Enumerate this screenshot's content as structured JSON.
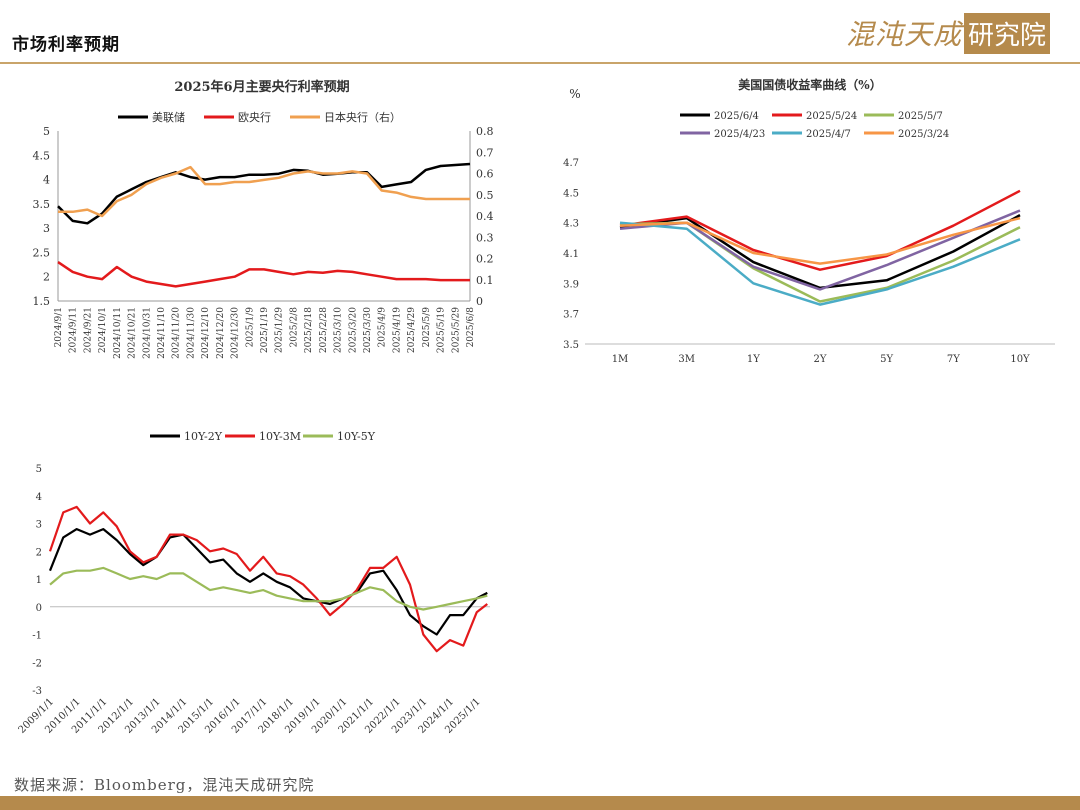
{
  "page": {
    "title": "市场利率预期",
    "logo_text": "混沌天成",
    "logo_box_text": "研究院",
    "source": "数据来源：Bloomberg，混沌天成研究院",
    "colors": {
      "accent": "#c9a46a",
      "logo": "#b58a4c"
    }
  },
  "chart_data": [
    {
      "type": "line",
      "title": "2025年6月主要央行利率预期",
      "legend_position": "top",
      "x_dates": [
        "2024/9/1",
        "2024/9/11",
        "2024/9/21",
        "2024/10/1",
        "2024/10/11",
        "2024/10/21",
        "2024/10/31",
        "2024/11/10",
        "2024/11/20",
        "2024/11/30",
        "2024/12/10",
        "2024/12/20",
        "2024/12/30",
        "2025/1/9",
        "2025/1/19",
        "2025/1/29",
        "2025/2/8",
        "2025/2/18",
        "2025/2/28",
        "2025/3/10",
        "2025/3/20",
        "2025/3/30",
        "2025/4/9",
        "2025/4/19",
        "2025/4/29",
        "2025/5/9",
        "2025/5/19",
        "2025/5/29",
        "2025/6/8"
      ],
      "ylim_left": [
        1.5,
        5
      ],
      "yticks_left": [
        "5",
        "4.5",
        "4",
        "3.5",
        "3",
        "2.5",
        "2",
        "1.5"
      ],
      "ylim_right": [
        0,
        0.8
      ],
      "yticks_right": [
        "0.8",
        "0.7",
        "0.6",
        "0.5",
        "0.4",
        "0.3",
        "0.2",
        "0.1",
        "0"
      ],
      "series": [
        {
          "name": "美联储",
          "color": "#000000",
          "axis": "left",
          "values": [
            3.45,
            3.15,
            3.1,
            3.3,
            3.65,
            3.8,
            3.95,
            4.05,
            4.15,
            4.05,
            4.0,
            4.05,
            4.05,
            4.1,
            4.1,
            4.12,
            4.2,
            4.18,
            4.1,
            4.12,
            4.15,
            4.15,
            3.85,
            3.9,
            3.95,
            4.2,
            4.28,
            4.3,
            4.32
          ]
        },
        {
          "name": "欧央行",
          "color": "#e31a1c",
          "axis": "left",
          "values": [
            2.3,
            2.1,
            2.0,
            1.95,
            2.2,
            2.0,
            1.9,
            1.85,
            1.8,
            1.85,
            1.9,
            1.95,
            2.0,
            2.15,
            2.15,
            2.1,
            2.05,
            2.1,
            2.08,
            2.12,
            2.1,
            2.05,
            2.0,
            1.95,
            1.95,
            1.95,
            1.93,
            1.93,
            1.93
          ]
        },
        {
          "name": "日本央行（右）",
          "color": "#f0a050",
          "axis": "right",
          "values": [
            0.42,
            0.42,
            0.43,
            0.4,
            0.47,
            0.5,
            0.55,
            0.58,
            0.6,
            0.63,
            0.55,
            0.55,
            0.56,
            0.56,
            0.57,
            0.58,
            0.6,
            0.61,
            0.6,
            0.6,
            0.61,
            0.6,
            0.52,
            0.51,
            0.49,
            0.48,
            0.48,
            0.48,
            0.48
          ]
        }
      ]
    },
    {
      "type": "line",
      "title": "美国国债收益率曲线（%）",
      "ylabel": "%",
      "legend_position": "top",
      "categories": [
        "1M",
        "3M",
        "1Y",
        "2Y",
        "5Y",
        "7Y",
        "10Y"
      ],
      "ylim": [
        3.5,
        4.7
      ],
      "yticks": [
        "4.7",
        "4.5",
        "4.3",
        "4.1",
        "3.9",
        "3.7",
        "3.5"
      ],
      "series": [
        {
          "name": "2025/6/4",
          "color": "#000000",
          "values": [
            4.27,
            4.33,
            4.04,
            3.87,
            3.92,
            4.11,
            4.35
          ]
        },
        {
          "name": "2025/5/24",
          "color": "#e31a1c",
          "values": [
            4.28,
            4.34,
            4.12,
            3.99,
            4.08,
            4.28,
            4.51
          ]
        },
        {
          "name": "2025/5/7",
          "color": "#9bbb59",
          "values": [
            4.29,
            4.3,
            4.0,
            3.78,
            3.87,
            4.05,
            4.27
          ]
        },
        {
          "name": "2025/4/23",
          "color": "#8064a2",
          "values": [
            4.26,
            4.3,
            4.01,
            3.86,
            4.02,
            4.2,
            4.38
          ]
        },
        {
          "name": "2025/4/7",
          "color": "#4bacc6",
          "values": [
            4.3,
            4.26,
            3.9,
            3.76,
            3.86,
            4.01,
            4.19
          ]
        },
        {
          "name": "2025/3/24",
          "color": "#f79646",
          "values": [
            4.28,
            4.3,
            4.1,
            4.03,
            4.09,
            4.22,
            4.33
          ]
        }
      ]
    },
    {
      "type": "line",
      "legend_position": "top",
      "x_dates": [
        "2009/1/1",
        "2010/1/1",
        "2011/1/1",
        "2012/1/1",
        "2013/1/1",
        "2014/1/1",
        "2015/1/1",
        "2016/1/1",
        "2017/1/1",
        "2018/1/1",
        "2019/1/1",
        "2020/1/1",
        "2021/1/1",
        "2022/1/1",
        "2023/1/1",
        "2024/1/1",
        "2025/1/1"
      ],
      "ylim": [
        -3,
        5
      ],
      "yticks": [
        "5",
        "4",
        "3",
        "2",
        "1",
        "0",
        "-1",
        "-2",
        "-3"
      ],
      "series": [
        {
          "name": "10Y-2Y",
          "color": "#000000",
          "x": [
            2009.0,
            2009.5,
            2010.0,
            2010.5,
            2011.0,
            2011.5,
            2012.0,
            2012.5,
            2013.0,
            2013.5,
            2014.0,
            2014.5,
            2015.0,
            2015.5,
            2016.0,
            2016.5,
            2017.0,
            2017.5,
            2018.0,
            2018.5,
            2019.0,
            2019.5,
            2020.0,
            2020.5,
            2021.0,
            2021.5,
            2022.0,
            2022.5,
            2023.0,
            2023.5,
            2024.0,
            2024.5,
            2025.0,
            2025.4
          ],
          "values": [
            1.3,
            2.5,
            2.8,
            2.6,
            2.8,
            2.4,
            1.9,
            1.5,
            1.8,
            2.5,
            2.6,
            2.1,
            1.6,
            1.7,
            1.2,
            0.9,
            1.2,
            0.9,
            0.7,
            0.3,
            0.2,
            0.1,
            0.3,
            0.5,
            1.2,
            1.3,
            0.6,
            -0.3,
            -0.7,
            -1.0,
            -0.3,
            -0.3,
            0.3,
            0.5
          ]
        },
        {
          "name": "10Y-3M",
          "color": "#e31a1c",
          "x": [
            2009.0,
            2009.5,
            2010.0,
            2010.5,
            2011.0,
            2011.5,
            2012.0,
            2012.5,
            2013.0,
            2013.5,
            2014.0,
            2014.5,
            2015.0,
            2015.5,
            2016.0,
            2016.5,
            2017.0,
            2017.5,
            2018.0,
            2018.5,
            2019.0,
            2019.5,
            2020.0,
            2020.5,
            2021.0,
            2021.5,
            2022.0,
            2022.5,
            2023.0,
            2023.5,
            2024.0,
            2024.5,
            2025.0,
            2025.4
          ],
          "values": [
            2.0,
            3.4,
            3.6,
            3.0,
            3.4,
            2.9,
            2.0,
            1.6,
            1.8,
            2.6,
            2.6,
            2.4,
            2.0,
            2.1,
            1.9,
            1.3,
            1.8,
            1.2,
            1.1,
            0.8,
            0.3,
            -0.3,
            0.1,
            0.6,
            1.4,
            1.4,
            1.8,
            0.8,
            -1.0,
            -1.6,
            -1.2,
            -1.4,
            -0.2,
            0.1
          ]
        },
        {
          "name": "10Y-5Y",
          "color": "#9bbb59",
          "x": [
            2009.0,
            2009.5,
            2010.0,
            2010.5,
            2011.0,
            2011.5,
            2012.0,
            2012.5,
            2013.0,
            2013.5,
            2014.0,
            2014.5,
            2015.0,
            2015.5,
            2016.0,
            2016.5,
            2017.0,
            2017.5,
            2018.0,
            2018.5,
            2019.0,
            2019.5,
            2020.0,
            2020.5,
            2021.0,
            2021.5,
            2022.0,
            2022.5,
            2023.0,
            2023.5,
            2024.0,
            2024.5,
            2025.0,
            2025.4
          ],
          "values": [
            0.8,
            1.2,
            1.3,
            1.3,
            1.4,
            1.2,
            1.0,
            1.1,
            1.0,
            1.2,
            1.2,
            0.9,
            0.6,
            0.7,
            0.6,
            0.5,
            0.6,
            0.4,
            0.3,
            0.2,
            0.2,
            0.2,
            0.3,
            0.5,
            0.7,
            0.6,
            0.2,
            0.0,
            -0.1,
            0.0,
            0.1,
            0.2,
            0.3,
            0.4
          ]
        }
      ]
    }
  ]
}
